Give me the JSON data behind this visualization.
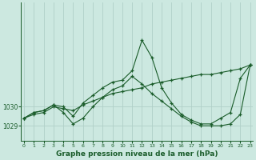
{
  "background_color": "#cce8e0",
  "grid_color": "#b0d0c8",
  "line_color": "#1a5c2a",
  "marker_color": "#1a5c2a",
  "xlabel": "Graphe pression niveau de la mer (hPa)",
  "xlabel_fontsize": 6.5,
  "xticks": [
    0,
    1,
    2,
    3,
    4,
    5,
    6,
    7,
    8,
    9,
    10,
    11,
    12,
    13,
    14,
    15,
    16,
    17,
    18,
    19,
    20,
    21,
    22,
    23
  ],
  "yticks": [
    1029,
    1030
  ],
  "ylim": [
    1028.2,
    1035.5
  ],
  "xlim": [
    -0.3,
    23.3
  ],
  "series": [
    {
      "x": [
        0,
        1,
        2,
        3,
        4,
        5,
        6,
        7,
        8,
        9,
        10,
        11,
        12,
        13,
        14,
        15,
        16,
        17,
        18,
        19,
        20,
        21,
        22,
        23
      ],
      "y": [
        1029.4,
        1029.6,
        1029.7,
        1030.0,
        1029.9,
        1029.8,
        1030.1,
        1030.3,
        1030.5,
        1030.7,
        1030.8,
        1030.9,
        1031.0,
        1031.2,
        1031.3,
        1031.4,
        1031.5,
        1031.6,
        1031.7,
        1031.7,
        1031.8,
        1031.9,
        1032.0,
        1032.2
      ]
    },
    {
      "x": [
        0,
        1,
        2,
        3,
        4,
        5,
        6,
        7,
        8,
        9,
        10,
        11,
        12,
        13,
        14,
        15,
        16,
        17,
        18,
        19,
        20,
        21,
        22,
        23
      ],
      "y": [
        1029.4,
        1029.7,
        1029.8,
        1030.1,
        1030.0,
        1029.5,
        1030.2,
        1030.6,
        1031.0,
        1031.3,
        1031.4,
        1031.9,
        1033.5,
        1032.6,
        1031.0,
        1030.2,
        1029.6,
        1029.3,
        1029.1,
        1029.1,
        1029.4,
        1029.7,
        1031.5,
        1032.2
      ]
    },
    {
      "x": [
        0,
        1,
        2,
        3,
        4,
        5,
        6,
        7,
        8,
        9,
        10,
        11,
        12,
        13,
        14,
        15,
        16,
        17,
        18,
        19,
        20,
        21,
        22,
        23
      ],
      "y": [
        1029.4,
        1029.7,
        1029.8,
        1030.1,
        1029.7,
        1029.1,
        1029.4,
        1030.0,
        1030.5,
        1030.9,
        1031.1,
        1031.6,
        1031.2,
        1030.7,
        1030.3,
        1029.9,
        1029.5,
        1029.2,
        1029.0,
        1029.0,
        1029.0,
        1029.1,
        1029.6,
        1032.2
      ]
    }
  ]
}
